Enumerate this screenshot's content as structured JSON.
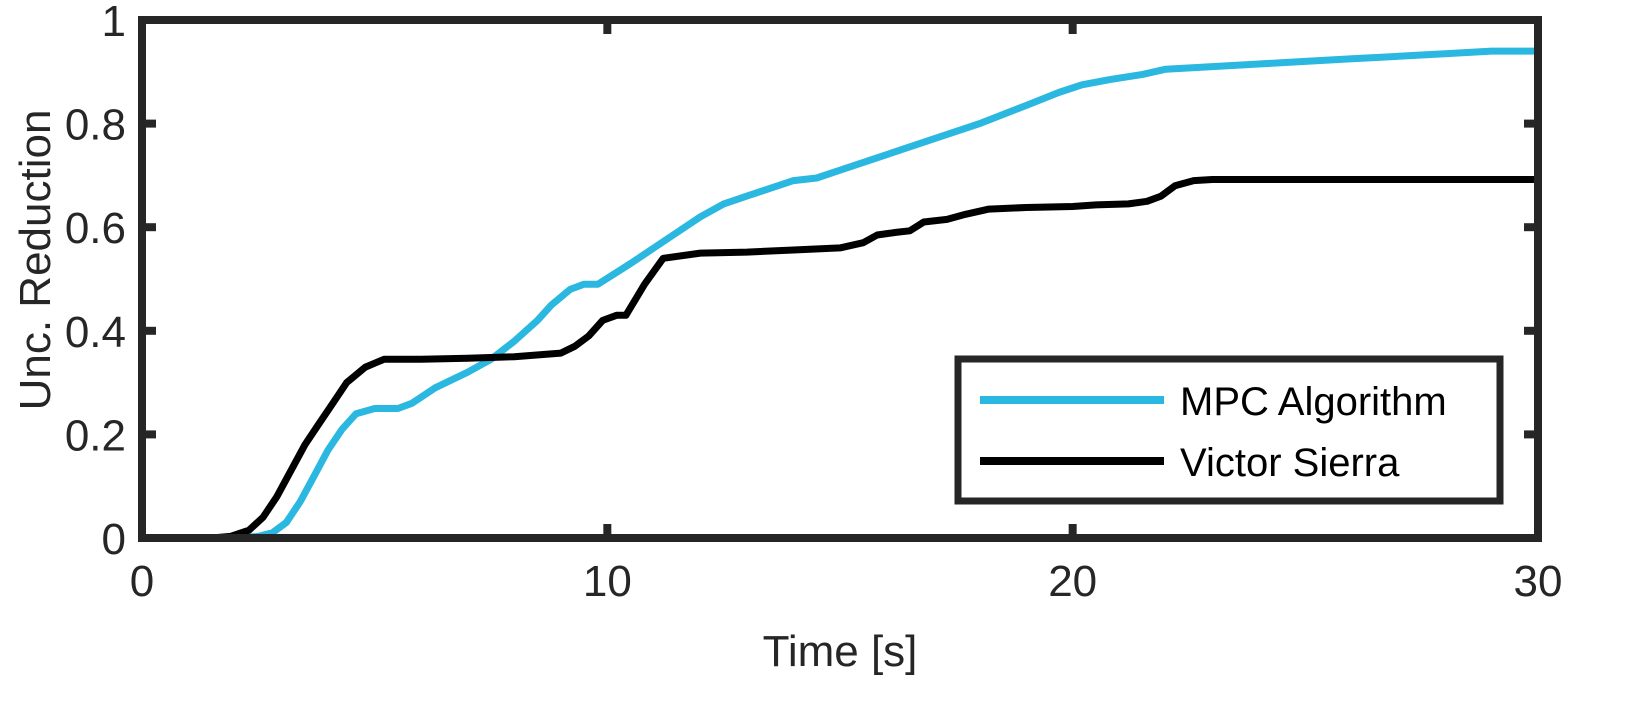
{
  "chart_data": {
    "type": "line",
    "xlabel": "Time [s]",
    "ylabel": "Unc. Reduction",
    "xlim": [
      0,
      30
    ],
    "ylim": [
      0,
      1
    ],
    "xticks": [
      0,
      10,
      20,
      30
    ],
    "xtick_labels": [
      "0",
      "10",
      "20",
      "30"
    ],
    "yticks": [
      0,
      0.2,
      0.4,
      0.6,
      0.8,
      1
    ],
    "ytick_labels": [
      "0",
      "0.2",
      "0.4",
      "0.6",
      "0.8",
      "1"
    ],
    "grid": false,
    "legend_position": "bottom-right",
    "series": [
      {
        "name": "MPC Algorithm",
        "color": "#2bb8e0",
        "x": [
          0,
          2.0,
          2.5,
          2.8,
          3.1,
          3.4,
          3.7,
          4.0,
          4.3,
          4.6,
          5.0,
          5.5,
          5.8,
          6.3,
          7.0,
          7.5,
          8.0,
          8.5,
          8.8,
          9.2,
          9.5,
          9.8,
          10.5,
          11.0,
          11.5,
          12.0,
          12.5,
          13.0,
          13.5,
          14.0,
          14.5,
          15.0,
          16.0,
          17.0,
          18.0,
          19.0,
          19.7,
          20.2,
          20.8,
          21.5,
          22.0,
          23.0,
          24.0,
          25.0,
          26.0,
          27.0,
          28.0,
          29.0,
          30.0
        ],
        "values": [
          0,
          0,
          0.003,
          0.01,
          0.03,
          0.07,
          0.12,
          0.17,
          0.21,
          0.24,
          0.25,
          0.25,
          0.26,
          0.29,
          0.32,
          0.345,
          0.38,
          0.42,
          0.45,
          0.48,
          0.49,
          0.49,
          0.53,
          0.56,
          0.59,
          0.62,
          0.645,
          0.66,
          0.675,
          0.69,
          0.695,
          0.71,
          0.74,
          0.77,
          0.8,
          0.835,
          0.86,
          0.875,
          0.885,
          0.895,
          0.905,
          0.91,
          0.915,
          0.92,
          0.925,
          0.93,
          0.935,
          0.94,
          0.94
        ]
      },
      {
        "name": "Victor Sierra",
        "color": "#000000",
        "x": [
          0,
          1.5,
          1.9,
          2.3,
          2.6,
          2.9,
          3.2,
          3.5,
          3.8,
          4.1,
          4.4,
          4.8,
          5.2,
          6.0,
          7.0,
          8.0,
          9.0,
          9.3,
          9.6,
          9.9,
          10.2,
          10.4,
          10.8,
          11.2,
          12.0,
          13.0,
          14.0,
          15.0,
          15.5,
          15.8,
          16.2,
          16.5,
          16.8,
          17.3,
          17.7,
          18.2,
          19.0,
          20.0,
          20.5,
          21.2,
          21.6,
          21.9,
          22.2,
          22.6,
          23.0,
          24.0,
          26.0,
          28.0,
          30.0
        ],
        "values": [
          0,
          0,
          0.003,
          0.015,
          0.04,
          0.08,
          0.13,
          0.18,
          0.22,
          0.26,
          0.3,
          0.33,
          0.345,
          0.345,
          0.347,
          0.35,
          0.357,
          0.37,
          0.39,
          0.42,
          0.43,
          0.43,
          0.49,
          0.54,
          0.55,
          0.552,
          0.556,
          0.56,
          0.57,
          0.585,
          0.59,
          0.593,
          0.61,
          0.615,
          0.625,
          0.635,
          0.638,
          0.64,
          0.643,
          0.645,
          0.65,
          0.66,
          0.68,
          0.69,
          0.692,
          0.692,
          0.692,
          0.692,
          0.692
        ]
      }
    ]
  }
}
